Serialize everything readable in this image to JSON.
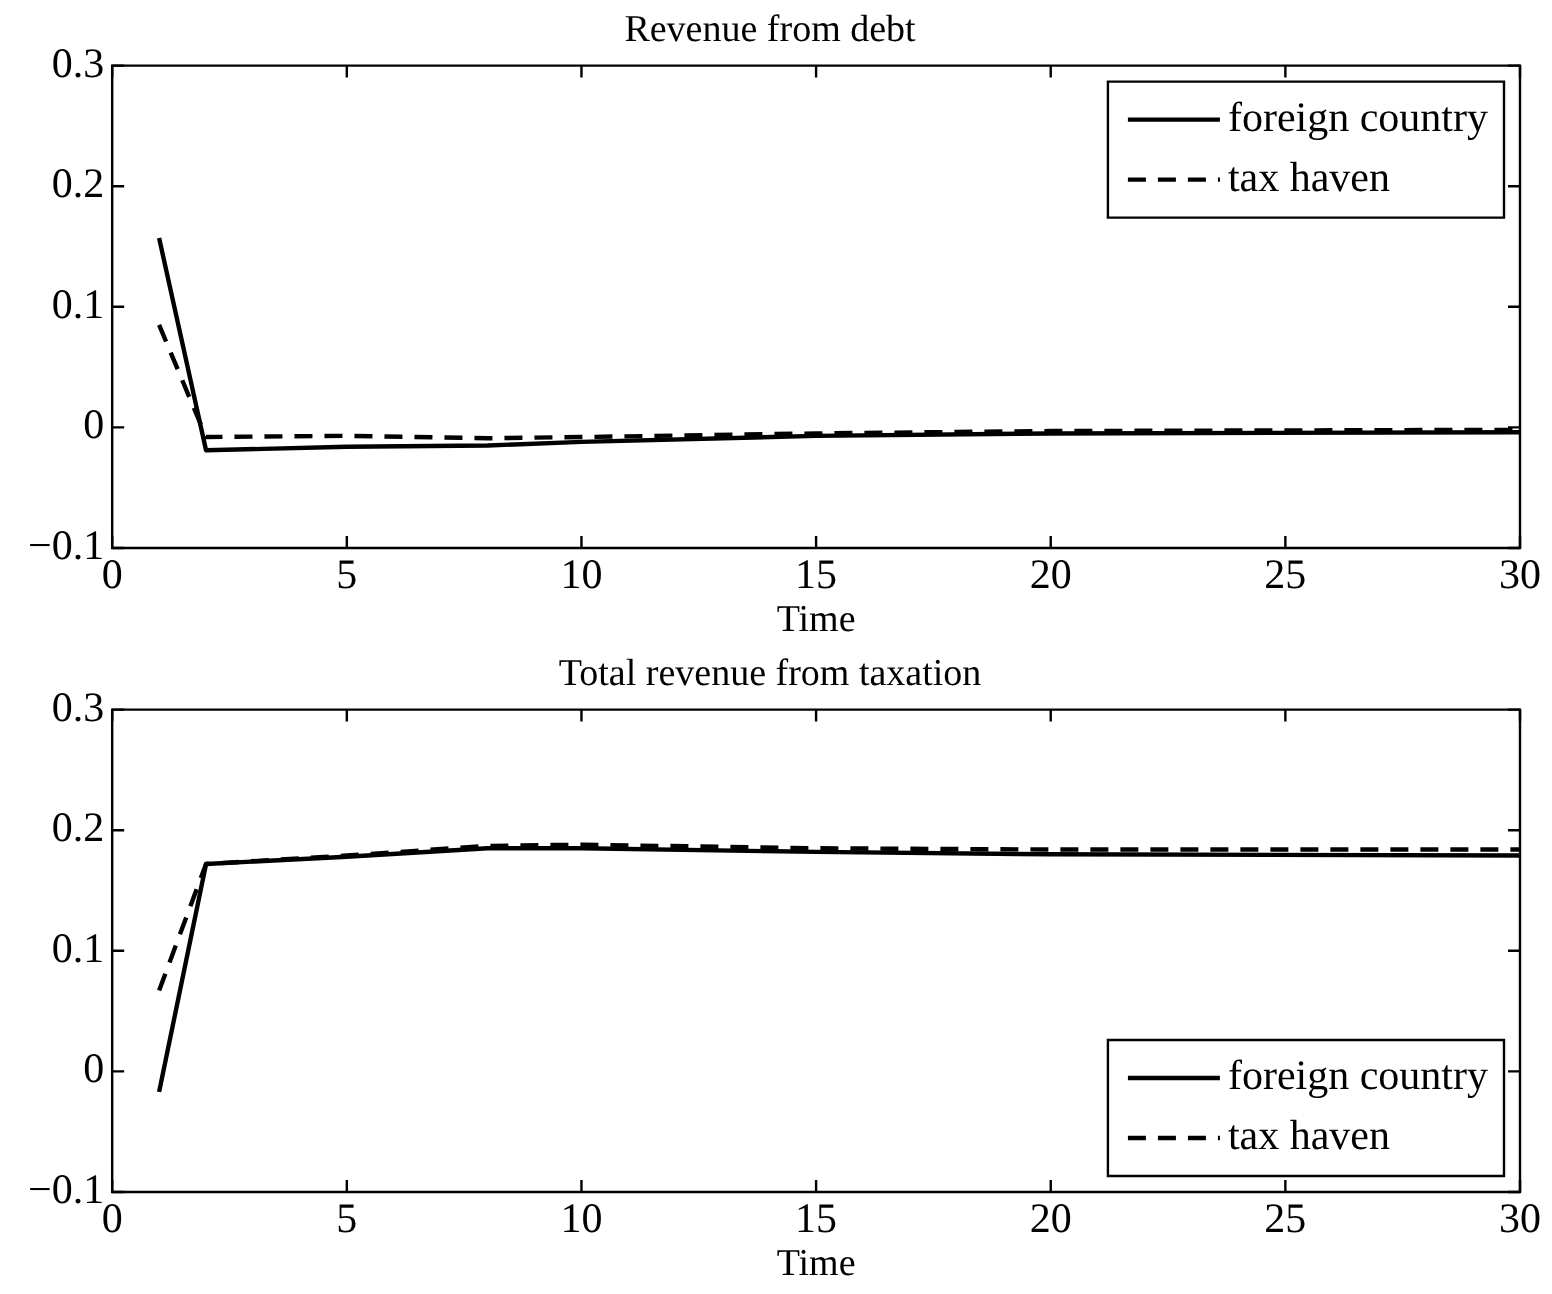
{
  "chart_data": [
    {
      "type": "line",
      "title": "Revenue from debt",
      "xlabel": "Time",
      "x": [
        1,
        2,
        5,
        8,
        10,
        15,
        20,
        30
      ],
      "series": [
        {
          "name": "foreign country",
          "color": "#000000",
          "line_style": "solid",
          "values": [
            0.157,
            -0.019,
            -0.016,
            -0.015,
            -0.012,
            -0.007,
            -0.005,
            -0.004
          ]
        },
        {
          "name": "tax haven",
          "color": "#000000",
          "line_style": "dashed",
          "values": [
            0.085,
            -0.008,
            -0.007,
            -0.009,
            -0.008,
            -0.005,
            -0.003,
            -0.002
          ]
        }
      ],
      "xlim": [
        0,
        30
      ],
      "xticks": [
        0,
        5,
        10,
        15,
        20,
        25,
        30
      ],
      "ylim": [
        -0.1,
        0.3
      ],
      "yticks": [
        {
          "value": -0.1,
          "label": "−0.1"
        },
        0,
        0.1,
        0.2,
        0.3
      ],
      "grid": false,
      "legend": "top right",
      "marker": "none"
    },
    {
      "type": "line",
      "title": "Total revenue from taxation",
      "xlabel": "Time",
      "x": [
        1,
        2,
        5,
        8,
        10,
        15,
        20,
        30
      ],
      "series": [
        {
          "name": "foreign country",
          "color": "#000000",
          "line_style": "solid",
          "values": [
            -0.017,
            0.172,
            0.178,
            0.185,
            0.185,
            0.182,
            0.18,
            0.179
          ]
        },
        {
          "name": "tax haven",
          "color": "#000000",
          "line_style": "dashed",
          "values": [
            0.067,
            0.172,
            0.179,
            0.187,
            0.188,
            0.185,
            0.184,
            0.184
          ]
        }
      ],
      "xlim": [
        0,
        30
      ],
      "xticks": [
        0,
        5,
        10,
        15,
        20,
        25,
        30
      ],
      "ylim": [
        -0.1,
        0.3
      ],
      "yticks": [
        {
          "value": -0.1,
          "label": "−0.1"
        },
        0,
        0.1,
        0.2,
        0.3
      ],
      "grid": false,
      "legend": "bottom right",
      "marker": "none"
    }
  ]
}
